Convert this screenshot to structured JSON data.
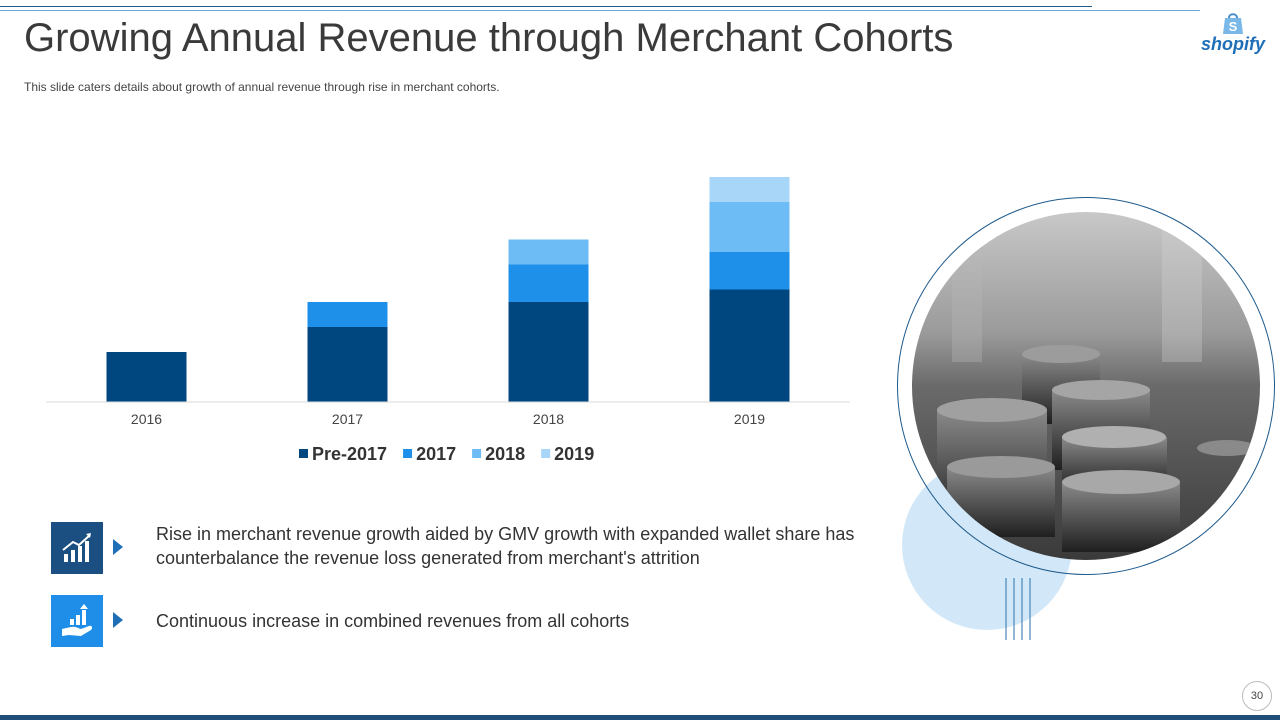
{
  "header": {
    "title": "Growing Annual Revenue through Merchant Cohorts",
    "subtitle": "This slide caters details about growth of annual revenue through rise in merchant cohorts.",
    "logo_text": "shopify"
  },
  "chart_data": {
    "type": "bar",
    "stacked": true,
    "categories": [
      "2016",
      "2017",
      "2018",
      "2019"
    ],
    "series": [
      {
        "name": "Pre-2017",
        "color": "#00467f",
        "values": [
          2.0,
          3.0,
          4.0,
          4.5
        ]
      },
      {
        "name": "2017",
        "color": "#1e90ea",
        "values": [
          0,
          1.0,
          1.5,
          1.5
        ]
      },
      {
        "name": "2018",
        "color": "#6dbcf5",
        "values": [
          0,
          0,
          1.0,
          2.0
        ]
      },
      {
        "name": "2019",
        "color": "#a8d6f9",
        "values": [
          0,
          0,
          0,
          1.0
        ]
      }
    ],
    "ylim": [
      0,
      9
    ],
    "title": "",
    "xlabel": "",
    "ylabel": "",
    "grid": false,
    "legend_position": "bottom"
  },
  "bullets": [
    {
      "icon": "growth-chart-icon",
      "text": "Rise in merchant revenue growth aided by GMV growth with expanded wallet share has counterbalance the revenue loss generated from merchant's attrition"
    },
    {
      "icon": "hand-growth-icon",
      "text": "Continuous increase in combined revenues from all cohorts"
    }
  ],
  "footer": {
    "page_number": "30"
  },
  "colors": {
    "accent_dark": "#00467f",
    "accent": "#1e90ea",
    "icon_dark": "#1b4f82",
    "icon_light": "#1e8ee8"
  }
}
